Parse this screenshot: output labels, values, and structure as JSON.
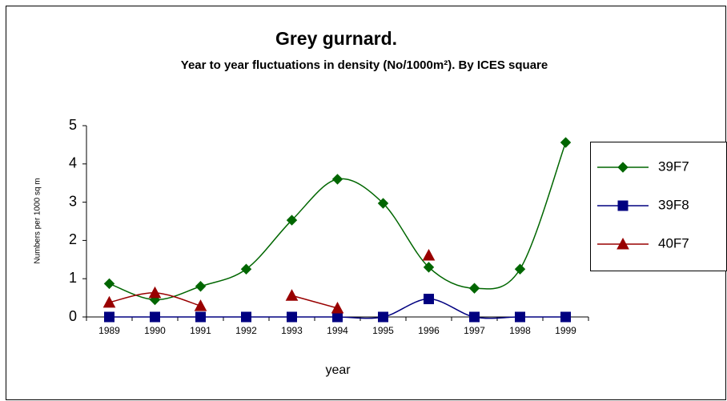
{
  "chart_data": {
    "type": "line",
    "title": "Grey gurnard.",
    "subtitle": "Year to year fluctuations in density (No/1000m²). By ICES square",
    "xlabel": "year",
    "ylabel": "Numbers per 1000 sq m",
    "categories": [
      "1989",
      "1990",
      "1991",
      "1992",
      "1993",
      "1994",
      "1995",
      "1996",
      "1997",
      "1998",
      "1999"
    ],
    "series": [
      {
        "name": "39F7",
        "color": "#006600",
        "marker": "diamond",
        "values": [
          0.87,
          0.45,
          0.8,
          1.25,
          2.53,
          3.6,
          2.97,
          1.3,
          0.75,
          1.25,
          4.56
        ]
      },
      {
        "name": "39F8",
        "color": "#000080",
        "marker": "square",
        "values": [
          0,
          0,
          0,
          0,
          0,
          0,
          0,
          0.47,
          0,
          0,
          0
        ]
      },
      {
        "name": "40F7",
        "color": "#990000",
        "marker": "triangle",
        "values": [
          0.38,
          0.63,
          0.29,
          null,
          0.56,
          0.23,
          null,
          1.61,
          null,
          null,
          null
        ]
      }
    ],
    "ylim": [
      0,
      5
    ],
    "yticks": [
      0,
      1,
      2,
      3,
      4,
      5
    ],
    "legend": "right",
    "smooth": true
  }
}
